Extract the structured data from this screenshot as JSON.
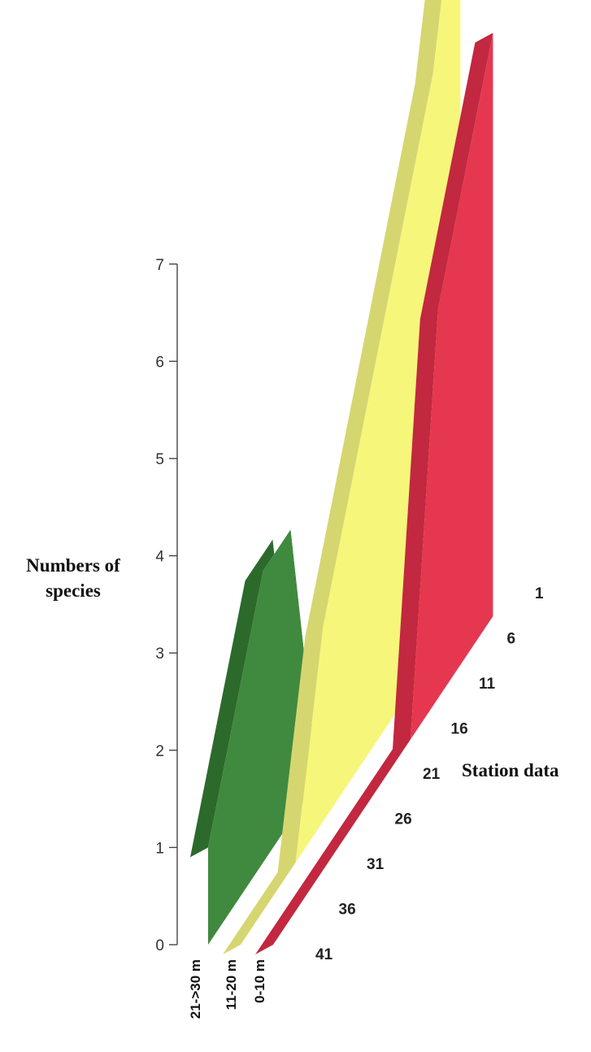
{
  "chart_data": {
    "type": "area",
    "ylabel_line1": "Numbers of",
    "ylabel_line2": "species",
    "xlabel": "Station data",
    "yticks": [
      "0",
      "1",
      "2",
      "3",
      "4",
      "5",
      "6",
      "7"
    ],
    "ylim": [
      0,
      7
    ],
    "station_ticks": [
      "1",
      "6",
      "11",
      "16",
      "21",
      "26",
      "31",
      "36",
      "41"
    ],
    "series_labels": [
      "21->30 m",
      "11-20 m",
      "0-10 m"
    ],
    "colors": {
      "deep_front": "#3f8a3f",
      "deep_top": "#2c6a2c",
      "deep_side": "#1e3d1e",
      "mid_front": "#f6f67a",
      "mid_top": "#d6d670",
      "mid_side": "#e8e86a",
      "shallow_front": "#e63750",
      "shallow_top": "#c22840",
      "shallow_side": "#d63048"
    },
    "series": [
      {
        "depth": "21->30 m",
        "stations": [
          1,
          6,
          11,
          16,
          21,
          26,
          31,
          36,
          41
        ],
        "values": [
          0,
          0,
          0,
          0,
          0,
          3,
          3,
          2,
          1
        ]
      },
      {
        "depth": "11-20 m",
        "stations": [
          1,
          6,
          11,
          16,
          21,
          26,
          31,
          36,
          41
        ],
        "values": [
          8,
          6,
          5,
          4,
          3,
          2,
          0,
          0,
          0
        ]
      },
      {
        "depth": "0-10 m",
        "stations": [
          1,
          6,
          11,
          16,
          21,
          26,
          31,
          36,
          41
        ],
        "values": [
          6,
          5,
          4,
          0,
          0,
          0,
          0,
          0,
          0
        ]
      }
    ]
  }
}
